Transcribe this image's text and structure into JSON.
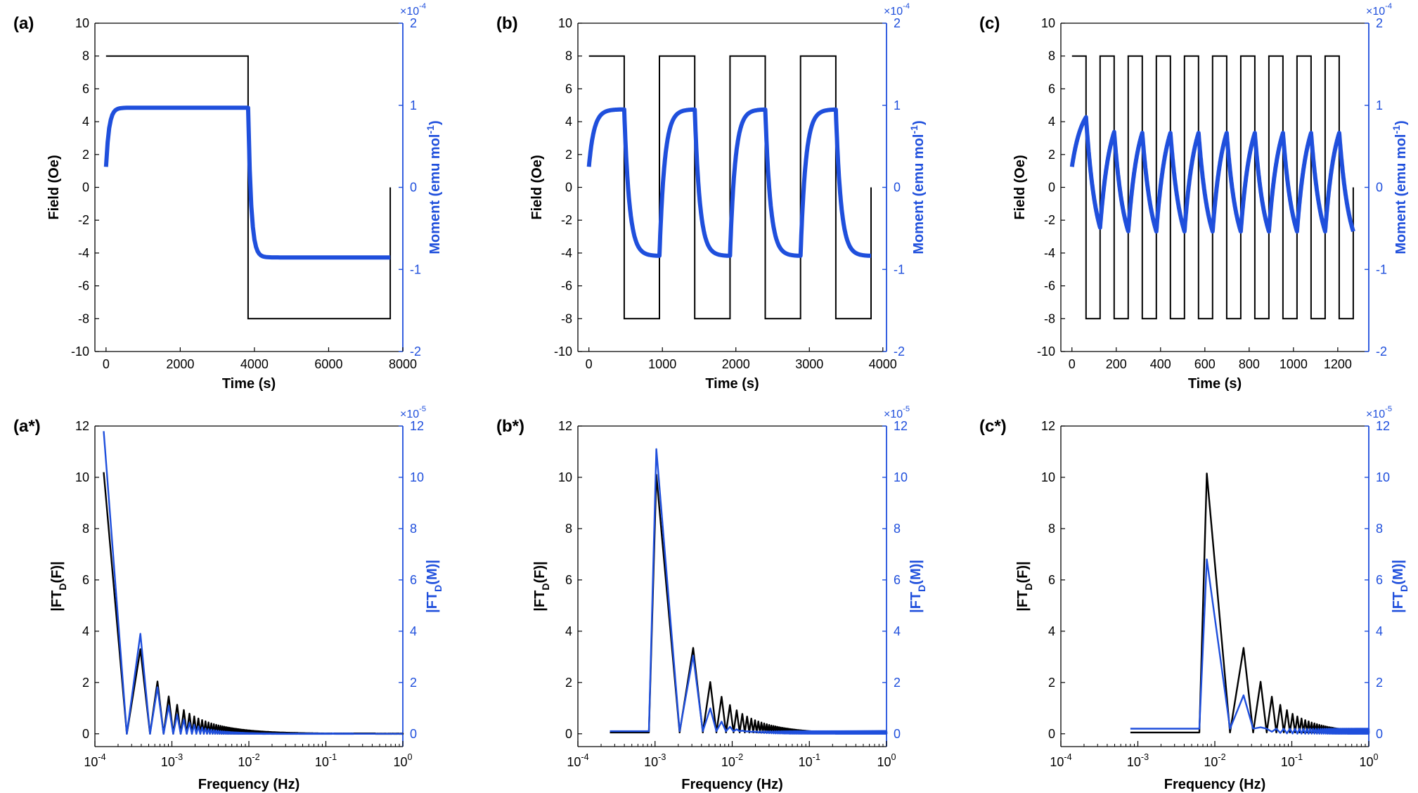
{
  "colors": {
    "field": "#000000",
    "moment": "#1f4fdc"
  },
  "chart_data": [
    {
      "type": "line",
      "panel_label": "(a)",
      "xlabel": "Time (s)",
      "ylabel_left": "Field (Oe)",
      "ylabel_right": "Moment (emu mol",
      "ylabel_right_sup": "-1",
      "ylabel_right_close": ")",
      "xlim": [
        -300,
        8000
      ],
      "xticks": [
        0,
        2000,
        4000,
        6000,
        8000
      ],
      "ylim_left": [
        -10,
        10
      ],
      "yticks_left": [
        -10,
        -8,
        -6,
        -4,
        -2,
        0,
        2,
        4,
        6,
        8,
        10
      ],
      "ylim_right": [
        -2,
        2
      ],
      "yticks_right": [
        -2,
        -1,
        0,
        1,
        2
      ],
      "right_exponent": "×10",
      "right_exponent_power": "-4",
      "period": 7660,
      "n_periods": 1,
      "tau": 80,
      "field_amplitude": 8,
      "moment_amplitude": 0.97,
      "series": [
        {
          "name": "Field",
          "axis": "left"
        },
        {
          "name": "Moment",
          "axis": "right"
        }
      ]
    },
    {
      "type": "line",
      "panel_label": "(b)",
      "xlabel": "Time (s)",
      "ylabel_left": "Field (Oe)",
      "ylabel_right": "Moment (emu mol",
      "ylabel_right_sup": "-1",
      "ylabel_right_close": ")",
      "xlim": [
        -150,
        4050
      ],
      "xticks": [
        0,
        1000,
        2000,
        3000,
        4000
      ],
      "ylim_left": [
        -10,
        10
      ],
      "yticks_left": [
        -10,
        -8,
        -6,
        -4,
        -2,
        0,
        2,
        4,
        6,
        8,
        10
      ],
      "ylim_right": [
        -2,
        2
      ],
      "yticks_right": [
        -2,
        -1,
        0,
        1,
        2
      ],
      "right_exponent": "×10",
      "right_exponent_power": "-4",
      "period": 960,
      "n_periods": 4,
      "tau": 70,
      "field_amplitude": 8,
      "moment_amplitude": 0.95,
      "series": [
        {
          "name": "Field",
          "axis": "left"
        },
        {
          "name": "Moment",
          "axis": "right"
        }
      ]
    },
    {
      "type": "line",
      "panel_label": "(c)",
      "xlabel": "Time (s)",
      "ylabel_left": "Field (Oe)",
      "ylabel_right": "Moment (emu mol",
      "ylabel_right_sup": "-1",
      "ylabel_right_close": ")",
      "xlim": [
        -50,
        1340
      ],
      "xticks": [
        0,
        200,
        400,
        600,
        800,
        1000,
        1200
      ],
      "ylim_left": [
        -10,
        10
      ],
      "yticks_left": [
        -10,
        -8,
        -6,
        -4,
        -2,
        0,
        2,
        4,
        6,
        8,
        10
      ],
      "ylim_right": [
        -2,
        2
      ],
      "yticks_right": [
        -2,
        -1,
        0,
        1,
        2
      ],
      "right_exponent": "×10",
      "right_exponent_power": "-4",
      "period": 127,
      "n_periods": 10,
      "tau": 45,
      "field_amplitude": 8,
      "moment_amplitude": 1.05,
      "series": [
        {
          "name": "Field",
          "axis": "left"
        },
        {
          "name": "Moment",
          "axis": "right"
        }
      ]
    },
    {
      "type": "line",
      "xscale": "log",
      "panel_label": "(a*)",
      "xlabel": "Frequency (Hz)",
      "ylabel_left": "|FT",
      "ylabel_left_sub": "D",
      "ylabel_left_tail": "(F)|",
      "ylabel_right": "|FT",
      "ylabel_right_sub": "D",
      "ylabel_right_tail": "(M)|",
      "xlim_exp": [
        -4,
        0
      ],
      "xtick_base": "10",
      "xtick_exponents": [
        "-4",
        "-3",
        "-2",
        "-1",
        "0"
      ],
      "ylim_left": [
        -0.5,
        12
      ],
      "yticks_left": [
        0,
        2,
        4,
        6,
        8,
        10,
        12
      ],
      "ylim_right": [
        -0.5,
        12
      ],
      "yticks_right": [
        0,
        2,
        4,
        6,
        8,
        10,
        12
      ],
      "right_exponent": "×10",
      "right_exponent_power": "-5",
      "f0": 0.00013,
      "f_start": 0.00013,
      "field_peak": 10.2,
      "moment_peak": 11.8,
      "field_third": 3.3,
      "moment_third": 3.9,
      "moment_decay": 1.5,
      "baseline_field": 0.0,
      "baseline_moment": 0.0,
      "grid": false
    },
    {
      "type": "line",
      "xscale": "log",
      "panel_label": "(b*)",
      "xlabel": "Frequency (Hz)",
      "ylabel_left": "|FT",
      "ylabel_left_sub": "D",
      "ylabel_left_tail": "(F)|",
      "ylabel_right": "|FT",
      "ylabel_right_sub": "D",
      "ylabel_right_tail": "(M)|",
      "xlim_exp": [
        -4,
        0
      ],
      "xtick_base": "10",
      "xtick_exponents": [
        "-4",
        "-3",
        "-2",
        "-1",
        "0"
      ],
      "ylim_left": [
        -0.5,
        12
      ],
      "yticks_left": [
        0,
        2,
        4,
        6,
        8,
        10,
        12
      ],
      "ylim_right": [
        -0.5,
        12
      ],
      "yticks_right": [
        0,
        2,
        4,
        6,
        8,
        10,
        12
      ],
      "right_exponent": "×10",
      "right_exponent_power": "-5",
      "f0": 0.00104,
      "f_start": 0.00026,
      "field_peak": 10.1,
      "moment_peak": 11.1,
      "field_third": 3.35,
      "moment_third": 3.05,
      "moment_decay": 2.2,
      "baseline_field": 0.05,
      "baseline_moment": 0.1,
      "grid": false
    },
    {
      "type": "line",
      "xscale": "log",
      "panel_label": "(c*)",
      "xlabel": "Frequency (Hz)",
      "ylabel_left": "|FT",
      "ylabel_left_sub": "D",
      "ylabel_left_tail": "(F)|",
      "ylabel_right": "|FT",
      "ylabel_right_sub": "D",
      "ylabel_right_tail": "(M)|",
      "xlim_exp": [
        -4,
        0
      ],
      "xtick_base": "10",
      "xtick_exponents": [
        "-4",
        "-3",
        "-2",
        "-1",
        "0"
      ],
      "ylim_left": [
        -0.5,
        12
      ],
      "yticks_left": [
        0,
        2,
        4,
        6,
        8,
        10,
        12
      ],
      "ylim_right": [
        -0.5,
        12
      ],
      "yticks_right": [
        0,
        2,
        4,
        6,
        8,
        10,
        12
      ],
      "right_exponent": "×10",
      "right_exponent_power": "-5",
      "f0": 0.00787,
      "f_start": 0.0008,
      "field_peak": 10.15,
      "moment_peak": 6.8,
      "field_third": 3.35,
      "moment_third": 1.5,
      "moment_decay": 3.5,
      "baseline_field": 0.05,
      "baseline_moment": 0.2,
      "grid": false
    }
  ]
}
